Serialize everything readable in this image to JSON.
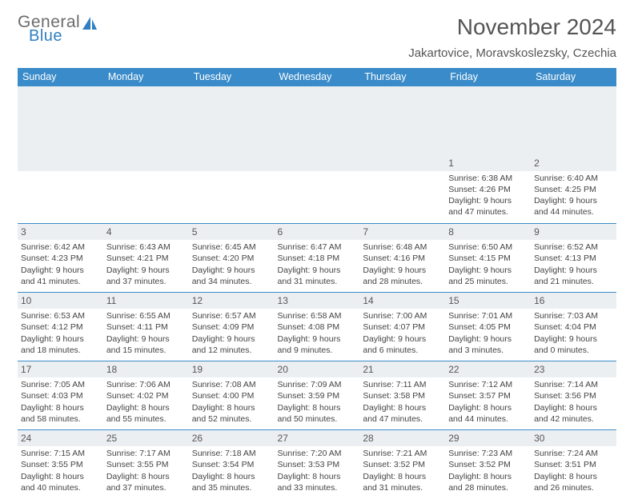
{
  "logo": {
    "text1": "General",
    "text2": "Blue"
  },
  "title": "November 2024",
  "location": "Jakartovice, Moravskoslezsky, Czechia",
  "day_headers": [
    "Sunday",
    "Monday",
    "Tuesday",
    "Wednesday",
    "Thursday",
    "Friday",
    "Saturday"
  ],
  "colors": {
    "header_bg": "#3a8bc9",
    "header_fg": "#ffffff",
    "daynum_bg": "#eceff1",
    "text": "#444444",
    "accent": "#2f7fc2",
    "divider": "#3a8bc9"
  },
  "fonts": {
    "title_size_pt": 28,
    "location_size_pt": 15,
    "header_size_pt": 12.5,
    "body_size_pt": 10.5
  },
  "weeks": [
    [
      {
        "n": "",
        "sr": "",
        "ss": "",
        "dl": "",
        "empty": true
      },
      {
        "n": "",
        "sr": "",
        "ss": "",
        "dl": "",
        "empty": true
      },
      {
        "n": "",
        "sr": "",
        "ss": "",
        "dl": "",
        "empty": true
      },
      {
        "n": "",
        "sr": "",
        "ss": "",
        "dl": "",
        "empty": true
      },
      {
        "n": "",
        "sr": "",
        "ss": "",
        "dl": "",
        "empty": true
      },
      {
        "n": "1",
        "sr": "Sunrise: 6:38 AM",
        "ss": "Sunset: 4:26 PM",
        "dl": "Daylight: 9 hours and 47 minutes."
      },
      {
        "n": "2",
        "sr": "Sunrise: 6:40 AM",
        "ss": "Sunset: 4:25 PM",
        "dl": "Daylight: 9 hours and 44 minutes."
      }
    ],
    [
      {
        "n": "3",
        "sr": "Sunrise: 6:42 AM",
        "ss": "Sunset: 4:23 PM",
        "dl": "Daylight: 9 hours and 41 minutes."
      },
      {
        "n": "4",
        "sr": "Sunrise: 6:43 AM",
        "ss": "Sunset: 4:21 PM",
        "dl": "Daylight: 9 hours and 37 minutes."
      },
      {
        "n": "5",
        "sr": "Sunrise: 6:45 AM",
        "ss": "Sunset: 4:20 PM",
        "dl": "Daylight: 9 hours and 34 minutes."
      },
      {
        "n": "6",
        "sr": "Sunrise: 6:47 AM",
        "ss": "Sunset: 4:18 PM",
        "dl": "Daylight: 9 hours and 31 minutes."
      },
      {
        "n": "7",
        "sr": "Sunrise: 6:48 AM",
        "ss": "Sunset: 4:16 PM",
        "dl": "Daylight: 9 hours and 28 minutes."
      },
      {
        "n": "8",
        "sr": "Sunrise: 6:50 AM",
        "ss": "Sunset: 4:15 PM",
        "dl": "Daylight: 9 hours and 25 minutes."
      },
      {
        "n": "9",
        "sr": "Sunrise: 6:52 AM",
        "ss": "Sunset: 4:13 PM",
        "dl": "Daylight: 9 hours and 21 minutes."
      }
    ],
    [
      {
        "n": "10",
        "sr": "Sunrise: 6:53 AM",
        "ss": "Sunset: 4:12 PM",
        "dl": "Daylight: 9 hours and 18 minutes."
      },
      {
        "n": "11",
        "sr": "Sunrise: 6:55 AM",
        "ss": "Sunset: 4:11 PM",
        "dl": "Daylight: 9 hours and 15 minutes."
      },
      {
        "n": "12",
        "sr": "Sunrise: 6:57 AM",
        "ss": "Sunset: 4:09 PM",
        "dl": "Daylight: 9 hours and 12 minutes."
      },
      {
        "n": "13",
        "sr": "Sunrise: 6:58 AM",
        "ss": "Sunset: 4:08 PM",
        "dl": "Daylight: 9 hours and 9 minutes."
      },
      {
        "n": "14",
        "sr": "Sunrise: 7:00 AM",
        "ss": "Sunset: 4:07 PM",
        "dl": "Daylight: 9 hours and 6 minutes."
      },
      {
        "n": "15",
        "sr": "Sunrise: 7:01 AM",
        "ss": "Sunset: 4:05 PM",
        "dl": "Daylight: 9 hours and 3 minutes."
      },
      {
        "n": "16",
        "sr": "Sunrise: 7:03 AM",
        "ss": "Sunset: 4:04 PM",
        "dl": "Daylight: 9 hours and 0 minutes."
      }
    ],
    [
      {
        "n": "17",
        "sr": "Sunrise: 7:05 AM",
        "ss": "Sunset: 4:03 PM",
        "dl": "Daylight: 8 hours and 58 minutes."
      },
      {
        "n": "18",
        "sr": "Sunrise: 7:06 AM",
        "ss": "Sunset: 4:02 PM",
        "dl": "Daylight: 8 hours and 55 minutes."
      },
      {
        "n": "19",
        "sr": "Sunrise: 7:08 AM",
        "ss": "Sunset: 4:00 PM",
        "dl": "Daylight: 8 hours and 52 minutes."
      },
      {
        "n": "20",
        "sr": "Sunrise: 7:09 AM",
        "ss": "Sunset: 3:59 PM",
        "dl": "Daylight: 8 hours and 50 minutes."
      },
      {
        "n": "21",
        "sr": "Sunrise: 7:11 AM",
        "ss": "Sunset: 3:58 PM",
        "dl": "Daylight: 8 hours and 47 minutes."
      },
      {
        "n": "22",
        "sr": "Sunrise: 7:12 AM",
        "ss": "Sunset: 3:57 PM",
        "dl": "Daylight: 8 hours and 44 minutes."
      },
      {
        "n": "23",
        "sr": "Sunrise: 7:14 AM",
        "ss": "Sunset: 3:56 PM",
        "dl": "Daylight: 8 hours and 42 minutes."
      }
    ],
    [
      {
        "n": "24",
        "sr": "Sunrise: 7:15 AM",
        "ss": "Sunset: 3:55 PM",
        "dl": "Daylight: 8 hours and 40 minutes."
      },
      {
        "n": "25",
        "sr": "Sunrise: 7:17 AM",
        "ss": "Sunset: 3:55 PM",
        "dl": "Daylight: 8 hours and 37 minutes."
      },
      {
        "n": "26",
        "sr": "Sunrise: 7:18 AM",
        "ss": "Sunset: 3:54 PM",
        "dl": "Daylight: 8 hours and 35 minutes."
      },
      {
        "n": "27",
        "sr": "Sunrise: 7:20 AM",
        "ss": "Sunset: 3:53 PM",
        "dl": "Daylight: 8 hours and 33 minutes."
      },
      {
        "n": "28",
        "sr": "Sunrise: 7:21 AM",
        "ss": "Sunset: 3:52 PM",
        "dl": "Daylight: 8 hours and 31 minutes."
      },
      {
        "n": "29",
        "sr": "Sunrise: 7:23 AM",
        "ss": "Sunset: 3:52 PM",
        "dl": "Daylight: 8 hours and 28 minutes."
      },
      {
        "n": "30",
        "sr": "Sunrise: 7:24 AM",
        "ss": "Sunset: 3:51 PM",
        "dl": "Daylight: 8 hours and 26 minutes."
      }
    ]
  ]
}
